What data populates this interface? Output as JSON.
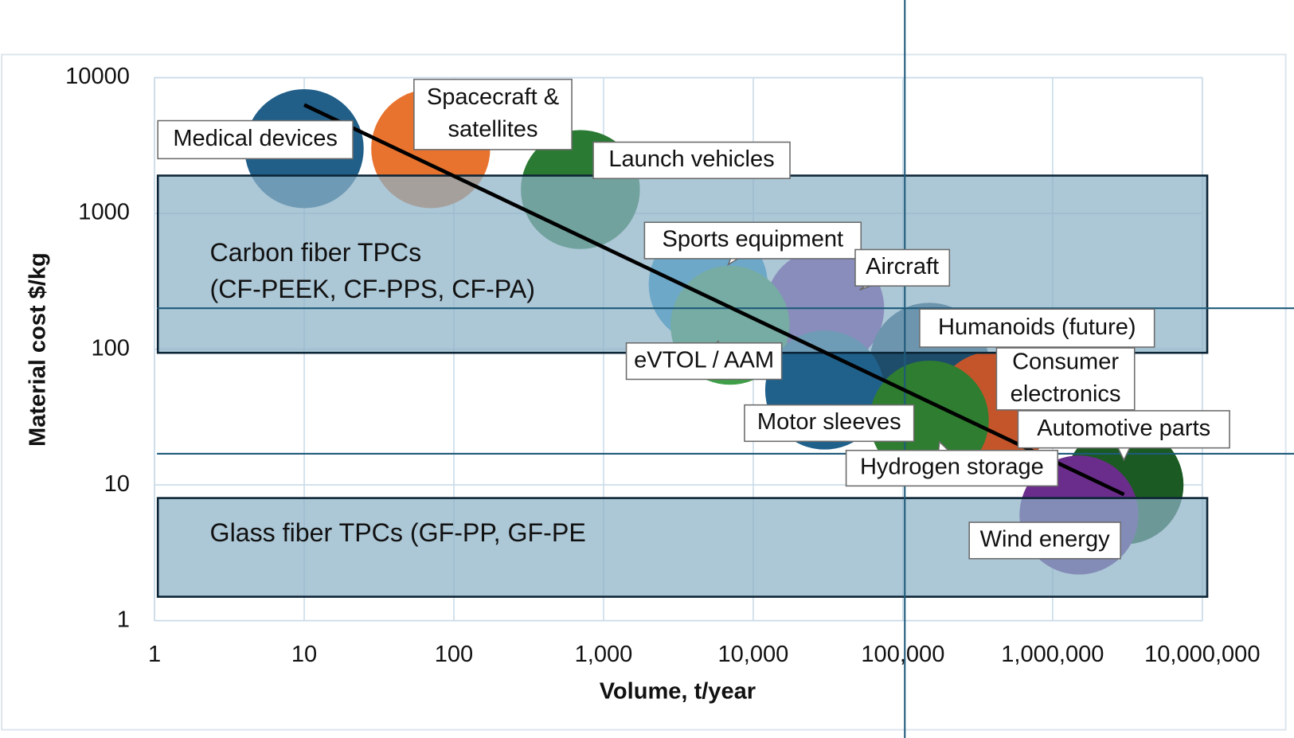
{
  "chart_data": {
    "type": "bubble",
    "x_label": "Volume, t/year",
    "y_label": "Material cost  $/kg",
    "xscale": "log",
    "yscale": "log",
    "xlim": [
      1,
      10000000
    ],
    "ylim": [
      1,
      10000
    ],
    "xticks": [
      1,
      10,
      100,
      {
        "value": 1000,
        "label": "1,000"
      },
      {
        "value": 10000,
        "label": "10,000"
      },
      {
        "value": 100000,
        "label": "100,000"
      },
      {
        "value": 1000000,
        "label": "1,000,000"
      },
      {
        "value": 10000000,
        "label": "10,000,000"
      }
    ],
    "yticks": [
      1,
      10,
      100,
      1000,
      10000
    ],
    "grid": true,
    "series": [
      {
        "label": [
          "Medical devices"
        ],
        "color": "#215f89",
        "x": 10,
        "y": 3000
      },
      {
        "label": [
          "Spacecraft &",
          "satellites"
        ],
        "color": "#e8732f",
        "x": 70,
        "y": 3000
      },
      {
        "label": [
          "Launch vehicles"
        ],
        "color": "#2b7a34",
        "x": 700,
        "y": 1500
      },
      {
        "label": [
          "Sports equipment"
        ],
        "color": "#1d8fcf",
        "x": 5000,
        "y": 300
      },
      {
        "label": [
          "Aircraft"
        ],
        "color": "#7e2fa3",
        "x": 30000,
        "y": 200
      },
      {
        "label": [
          "eVTOL / AAM"
        ],
        "color": "#3f9f48",
        "x": 7000,
        "y": 150
      },
      {
        "label": [
          "Humanoids (future)"
        ],
        "color": "#1e4d6b",
        "x": 150000,
        "y": 80
      },
      {
        "label": [
          "Consumer",
          "electronics"
        ],
        "color": "#c4552b",
        "x": 400000,
        "y": 35
      },
      {
        "label": [
          "Motor sleeves"
        ],
        "color": "#20618c",
        "x": 30000,
        "y": 50
      },
      {
        "label": [
          "Hydrogen storage"
        ],
        "color": "#2f7d30",
        "x": 150000,
        "y": 30
      },
      {
        "label": [
          "Automotive  parts"
        ],
        "color": "#1b5a22",
        "x": 3000000,
        "y": 10
      },
      {
        "label": [
          "Wind energy"
        ],
        "color": "#6b2d8c",
        "x": 1500000,
        "y": 6
      }
    ],
    "trendline": {
      "x": [
        10,
        3000000
      ],
      "y": [
        6300,
        8.5
      ]
    },
    "regions": [
      {
        "label": [
          "Carbon fiber TPCs",
          "(CF-PEEK, CF-PPS, CF-PA)"
        ],
        "ylim": [
          94,
          1900
        ]
      },
      {
        "label": [
          "Glass fiber TPCs (GF-PP, GF-PE"
        ],
        "ylim": [
          1.5,
          8
        ]
      }
    ]
  }
}
